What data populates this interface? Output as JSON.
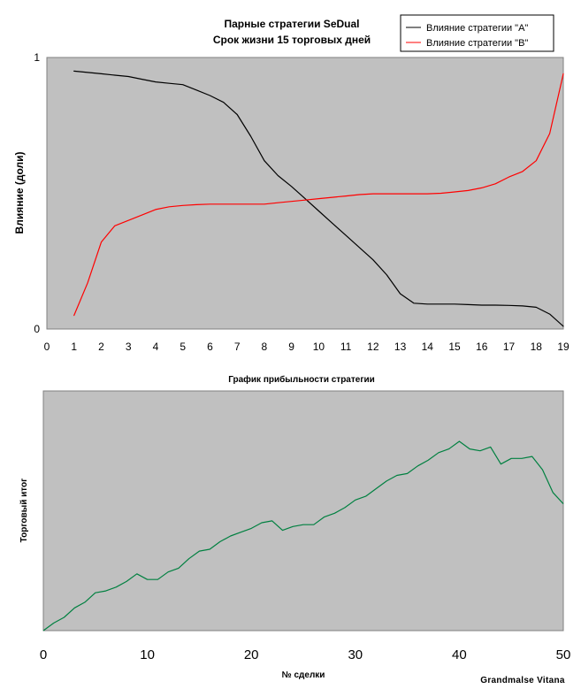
{
  "chart_data": [
    {
      "type": "line",
      "title": [
        "Парные стратегии SeDual",
        "Срок жизни 15 торговых дней"
      ],
      "ylabel": "Влияние (доли)",
      "xlabel": "",
      "x_ticks": [
        0,
        1,
        2,
        3,
        4,
        5,
        6,
        7,
        8,
        9,
        10,
        11,
        12,
        13,
        14,
        15,
        16,
        17,
        18,
        19
      ],
      "y_ticks": [
        "0",
        "1"
      ],
      "xlim": [
        0,
        19
      ],
      "ylim": [
        0,
        1
      ],
      "legend": {
        "placement": "top-right"
      },
      "series": [
        {
          "name": "Влияние стратегии \"A\"",
          "color": "#000000",
          "x": [
            1,
            1.5,
            2,
            2.5,
            3,
            3.5,
            4,
            4.5,
            5,
            5.5,
            6,
            6.5,
            7,
            7.5,
            8,
            8.5,
            9,
            9.5,
            10,
            10.5,
            11,
            11.5,
            12,
            12.5,
            13,
            13.5,
            14,
            14.5,
            15,
            15.5,
            16,
            16.5,
            17,
            17.5,
            18,
            18.5,
            19
          ],
          "y": [
            0.95,
            0.945,
            0.94,
            0.935,
            0.93,
            0.92,
            0.91,
            0.905,
            0.9,
            0.88,
            0.86,
            0.835,
            0.79,
            0.71,
            0.62,
            0.565,
            0.525,
            0.48,
            0.435,
            0.39,
            0.345,
            0.3,
            0.255,
            0.2,
            0.13,
            0.095,
            0.092,
            0.092,
            0.092,
            0.09,
            0.088,
            0.088,
            0.087,
            0.085,
            0.08,
            0.055,
            0.01
          ]
        },
        {
          "name": "Влияние стратегии \"B\"",
          "color": "#ff0000",
          "x": [
            1,
            1.5,
            2,
            2.5,
            3,
            3.5,
            4,
            4.5,
            5,
            5.5,
            6,
            6.5,
            7,
            7.5,
            8,
            8.5,
            9,
            9.5,
            10,
            10.5,
            11,
            11.5,
            12,
            12.5,
            13,
            13.5,
            14,
            14.5,
            15,
            15.5,
            16,
            16.5,
            17,
            17.5,
            18,
            18.5,
            19
          ],
          "y": [
            0.05,
            0.17,
            0.32,
            0.38,
            0.4,
            0.42,
            0.44,
            0.45,
            0.455,
            0.458,
            0.46,
            0.46,
            0.46,
            0.46,
            0.46,
            0.465,
            0.47,
            0.475,
            0.48,
            0.485,
            0.49,
            0.495,
            0.498,
            0.498,
            0.498,
            0.498,
            0.498,
            0.5,
            0.505,
            0.51,
            0.52,
            0.535,
            0.56,
            0.58,
            0.62,
            0.72,
            0.94
          ]
        }
      ]
    },
    {
      "type": "line",
      "title": "График прибыльности стратегии",
      "xlabel": "№ сделки",
      "ylabel": "Торговый итог",
      "x_ticks": [
        0,
        10,
        20,
        30,
        40,
        50
      ],
      "xlim": [
        0,
        50
      ],
      "ylim": [
        0,
        100
      ],
      "legend": null,
      "series": [
        {
          "color": "#008040",
          "x": [
            0,
            1,
            2,
            3,
            4,
            5,
            6,
            7,
            8,
            9,
            10,
            11,
            12,
            13,
            14,
            15,
            16,
            17,
            18,
            19,
            20,
            21,
            22,
            23,
            24,
            25,
            26,
            27,
            28,
            29,
            30,
            31,
            32,
            33,
            34,
            35,
            36,
            37,
            38,
            39,
            40,
            41,
            42,
            43,
            44,
            45,
            46,
            47,
            48,
            49,
            50
          ],
          "y": [
            0,
            4,
            7,
            12,
            15,
            20,
            21,
            23,
            26,
            30,
            27,
            27,
            31,
            33,
            38,
            42,
            43,
            47,
            50,
            52,
            54,
            57,
            58,
            53,
            55,
            56,
            56,
            60,
            62,
            65,
            69,
            71,
            75,
            79,
            82,
            83,
            87,
            90,
            94,
            96,
            100,
            96,
            95,
            97,
            88,
            91,
            91,
            92,
            85,
            73,
            67
          ]
        }
      ]
    }
  ],
  "watermark": "Grandmalse Vitana"
}
